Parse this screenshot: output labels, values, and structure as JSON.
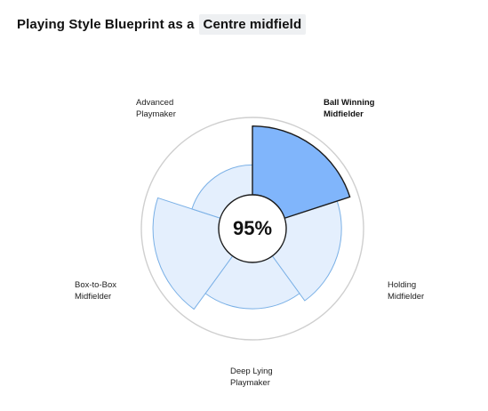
{
  "header": {
    "title": "Playing Style Blueprint as a",
    "position": "Centre midfield"
  },
  "radar": {
    "center_value": "95%",
    "highlight_color": "#80b5fb",
    "base_color": "#e4effd",
    "stroke_color": "#7ab0e6",
    "roles": [
      {
        "label_line1": "Ball Winning",
        "label_line2": "Midfielder",
        "score": 0.92,
        "highlighted": true
      },
      {
        "label_line1": "Holding",
        "label_line2": "Midfielder",
        "score": 0.74,
        "highlighted": false
      },
      {
        "label_line1": "Deep Lying",
        "label_line2": "Playmaker",
        "score": 0.62,
        "highlighted": false
      },
      {
        "label_line1": "Box-to-Box",
        "label_line2": "Midfielder",
        "score": 0.88,
        "highlighted": false
      },
      {
        "label_line1": "Advanced",
        "label_line2": "Playmaker",
        "score": 0.4,
        "highlighted": false
      }
    ]
  }
}
